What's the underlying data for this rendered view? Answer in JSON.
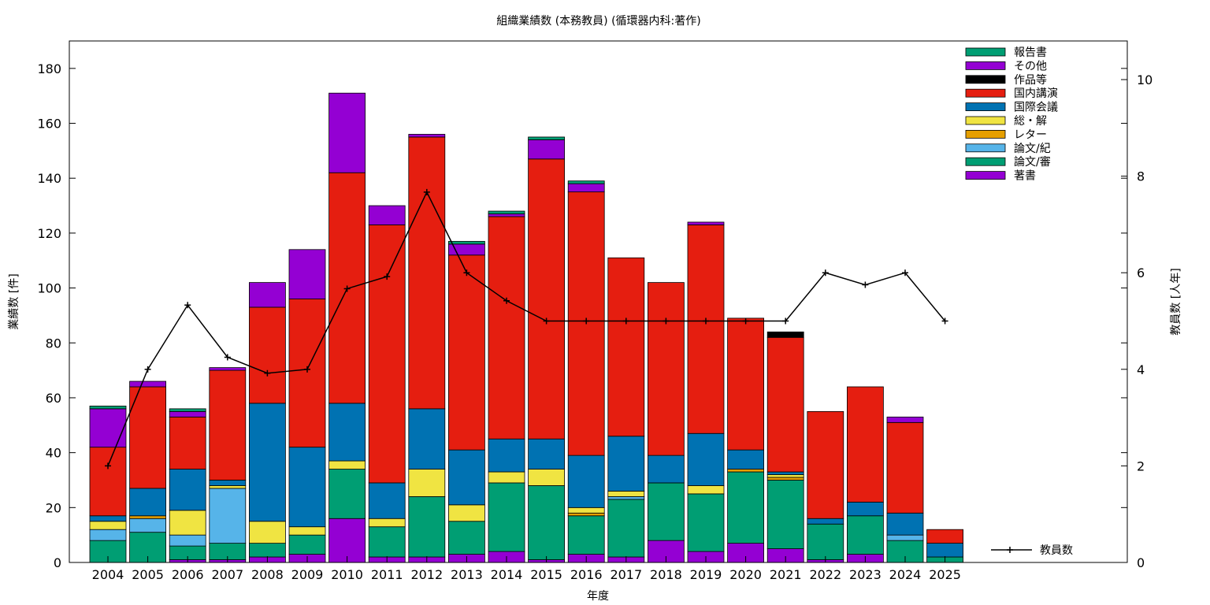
{
  "chart_data": {
    "type": "bar",
    "stacked": true,
    "title": "組織業績数 (本務教員) (循環器内科:著作)",
    "xlabel": "年度",
    "ylabel": "業績数 [件]",
    "y2label": "教員数 [人年]",
    "ylim": [
      0,
      190
    ],
    "y2lim": [
      0,
      10.8
    ],
    "yticks": [
      0,
      20,
      40,
      60,
      80,
      100,
      120,
      140,
      160,
      180
    ],
    "y2ticks": [
      0,
      2,
      4,
      6,
      8,
      10
    ],
    "grid": false,
    "legend_position": "top-right",
    "categories": [
      "2004",
      "2005",
      "2006",
      "2007",
      "2008",
      "2009",
      "2010",
      "2011",
      "2012",
      "2013",
      "2014",
      "2015",
      "2016",
      "2017",
      "2018",
      "2019",
      "2020",
      "2021",
      "2022",
      "2023",
      "2024",
      "2025"
    ],
    "series": [
      {
        "name": "著書",
        "color": "#9400d3",
        "values": [
          0,
          0,
          1,
          1,
          2,
          3,
          16,
          2,
          2,
          3,
          4,
          1,
          3,
          2,
          8,
          4,
          7,
          5,
          1,
          3,
          0,
          0
        ]
      },
      {
        "name": "論文/審",
        "color": "#009e73",
        "values": [
          8,
          11,
          5,
          6,
          5,
          7,
          18,
          11,
          22,
          12,
          25,
          27,
          14,
          21,
          21,
          21,
          26,
          25,
          13,
          14,
          8,
          2
        ]
      },
      {
        "name": "論文/紀",
        "color": "#56b4e9",
        "values": [
          4,
          5,
          4,
          20,
          0,
          0,
          0,
          0,
          0,
          0,
          0,
          0,
          0,
          1,
          0,
          0,
          0,
          0,
          0,
          0,
          2,
          0
        ]
      },
      {
        "name": "レター",
        "color": "#e69f00",
        "values": [
          0,
          1,
          0,
          0,
          0,
          0,
          0,
          0,
          0,
          0,
          0,
          0,
          1,
          0,
          0,
          0,
          1,
          1,
          0,
          0,
          0,
          0
        ]
      },
      {
        "name": "総・解",
        "color": "#f0e442",
        "values": [
          3,
          0,
          9,
          1,
          8,
          3,
          3,
          3,
          10,
          6,
          4,
          6,
          2,
          2,
          0,
          3,
          0,
          1,
          0,
          0,
          0,
          0
        ]
      },
      {
        "name": "国際会議",
        "color": "#0072b2",
        "values": [
          2,
          10,
          15,
          2,
          43,
          29,
          21,
          13,
          22,
          20,
          12,
          11,
          19,
          20,
          10,
          19,
          7,
          1,
          2,
          5,
          8,
          5
        ]
      },
      {
        "name": "国内講演",
        "color": "#e51e10",
        "values": [
          25,
          37,
          19,
          40,
          35,
          54,
          84,
          94,
          99,
          71,
          81,
          102,
          96,
          65,
          63,
          76,
          48,
          49,
          39,
          42,
          33,
          5
        ]
      },
      {
        "name": "作品等",
        "color": "#000000",
        "values": [
          0,
          0,
          0,
          0,
          0,
          0,
          0,
          0,
          0,
          0,
          0,
          0,
          0,
          0,
          0,
          0,
          0,
          2,
          0,
          0,
          0,
          0
        ]
      },
      {
        "name": "その他",
        "color": "#9400d3",
        "values": [
          14,
          2,
          2,
          1,
          9,
          18,
          29,
          7,
          1,
          4,
          1,
          7,
          3,
          0,
          0,
          1,
          0,
          0,
          0,
          0,
          2,
          0
        ]
      },
      {
        "name": "報告書",
        "color": "#009e73",
        "values": [
          1,
          0,
          1,
          0,
          0,
          0,
          0,
          0,
          0,
          1,
          1,
          1,
          1,
          0,
          0,
          0,
          0,
          0,
          0,
          0,
          0,
          0
        ]
      }
    ],
    "line_series": {
      "name": "教員数",
      "axis": "y2",
      "values": [
        2.0,
        4.0,
        5.33,
        4.25,
        3.92,
        4.0,
        5.67,
        5.92,
        7.67,
        6.0,
        5.42,
        5.0,
        5.0,
        5.0,
        5.0,
        5.0,
        5.0,
        5.0,
        6.0,
        5.75,
        6.0,
        5.0
      ]
    }
  }
}
